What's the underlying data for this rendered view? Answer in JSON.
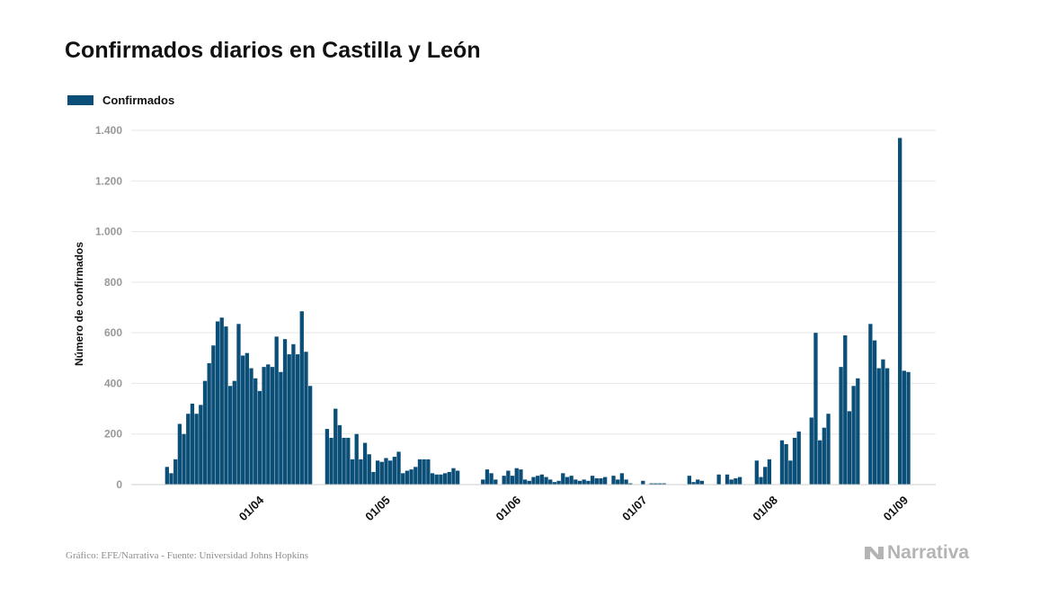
{
  "chart_data": {
    "type": "bar",
    "title": "Confirmados diarios en Castilla y León",
    "ylabel": "Número de confirmados",
    "ylim": [
      0,
      1400
    ],
    "yticks": [
      0,
      200,
      400,
      600,
      800,
      1000,
      1200,
      1400
    ],
    "ytick_labels": [
      "0",
      "200",
      "400",
      "600",
      "800",
      "1.000",
      "1.200",
      "1.400"
    ],
    "x_start": "2020-03-03",
    "x_end": "2020-09-10",
    "xtick_dates": [
      "2020-04-01",
      "2020-05-01",
      "2020-06-01",
      "2020-07-01",
      "2020-08-01",
      "2020-09-01"
    ],
    "xtick_labels": [
      "01/04",
      "01/05",
      "01/06",
      "01/07",
      "01/08",
      "01/09"
    ],
    "grid": true,
    "legend_position": "top-left",
    "series": [
      {
        "name": "Confirmados",
        "color": "#0b4f78",
        "points": [
          {
            "x": "2020-03-11",
            "y": 70
          },
          {
            "x": "2020-03-12",
            "y": 45
          },
          {
            "x": "2020-03-13",
            "y": 100
          },
          {
            "x": "2020-03-14",
            "y": 240
          },
          {
            "x": "2020-03-15",
            "y": 200
          },
          {
            "x": "2020-03-16",
            "y": 280
          },
          {
            "x": "2020-03-17",
            "y": 320
          },
          {
            "x": "2020-03-18",
            "y": 280
          },
          {
            "x": "2020-03-19",
            "y": 315
          },
          {
            "x": "2020-03-20",
            "y": 410
          },
          {
            "x": "2020-03-21",
            "y": 480
          },
          {
            "x": "2020-03-22",
            "y": 550
          },
          {
            "x": "2020-03-23",
            "y": 645
          },
          {
            "x": "2020-03-24",
            "y": 660
          },
          {
            "x": "2020-03-25",
            "y": 625
          },
          {
            "x": "2020-03-26",
            "y": 390
          },
          {
            "x": "2020-03-27",
            "y": 410
          },
          {
            "x": "2020-03-28",
            "y": 635
          },
          {
            "x": "2020-03-29",
            "y": 510
          },
          {
            "x": "2020-03-30",
            "y": 520
          },
          {
            "x": "2020-03-31",
            "y": 460
          },
          {
            "x": "2020-04-01",
            "y": 420
          },
          {
            "x": "2020-04-02",
            "y": 370
          },
          {
            "x": "2020-04-03",
            "y": 465
          },
          {
            "x": "2020-04-04",
            "y": 475
          },
          {
            "x": "2020-04-05",
            "y": 465
          },
          {
            "x": "2020-04-06",
            "y": 585
          },
          {
            "x": "2020-04-07",
            "y": 445
          },
          {
            "x": "2020-04-08",
            "y": 575
          },
          {
            "x": "2020-04-09",
            "y": 515
          },
          {
            "x": "2020-04-10",
            "y": 555
          },
          {
            "x": "2020-04-11",
            "y": 515
          },
          {
            "x": "2020-04-12",
            "y": 685
          },
          {
            "x": "2020-04-13",
            "y": 525
          },
          {
            "x": "2020-04-14",
            "y": 390
          },
          {
            "x": "2020-04-18",
            "y": 220
          },
          {
            "x": "2020-04-19",
            "y": 185
          },
          {
            "x": "2020-04-20",
            "y": 300
          },
          {
            "x": "2020-04-21",
            "y": 235
          },
          {
            "x": "2020-04-22",
            "y": 185
          },
          {
            "x": "2020-04-23",
            "y": 185
          },
          {
            "x": "2020-04-24",
            "y": 100
          },
          {
            "x": "2020-04-25",
            "y": 200
          },
          {
            "x": "2020-04-26",
            "y": 100
          },
          {
            "x": "2020-04-27",
            "y": 165
          },
          {
            "x": "2020-04-28",
            "y": 120
          },
          {
            "x": "2020-04-29",
            "y": 50
          },
          {
            "x": "2020-04-30",
            "y": 95
          },
          {
            "x": "2020-05-01",
            "y": 90
          },
          {
            "x": "2020-05-02",
            "y": 105
          },
          {
            "x": "2020-05-03",
            "y": 95
          },
          {
            "x": "2020-05-04",
            "y": 110
          },
          {
            "x": "2020-05-05",
            "y": 130
          },
          {
            "x": "2020-05-06",
            "y": 45
          },
          {
            "x": "2020-05-07",
            "y": 55
          },
          {
            "x": "2020-05-08",
            "y": 60
          },
          {
            "x": "2020-05-09",
            "y": 70
          },
          {
            "x": "2020-05-10",
            "y": 100
          },
          {
            "x": "2020-05-11",
            "y": 100
          },
          {
            "x": "2020-05-12",
            "y": 100
          },
          {
            "x": "2020-05-13",
            "y": 45
          },
          {
            "x": "2020-05-14",
            "y": 40
          },
          {
            "x": "2020-05-15",
            "y": 40
          },
          {
            "x": "2020-05-16",
            "y": 45
          },
          {
            "x": "2020-05-17",
            "y": 50
          },
          {
            "x": "2020-05-18",
            "y": 65
          },
          {
            "x": "2020-05-19",
            "y": 55
          },
          {
            "x": "2020-05-25",
            "y": 20
          },
          {
            "x": "2020-05-26",
            "y": 60
          },
          {
            "x": "2020-05-27",
            "y": 45
          },
          {
            "x": "2020-05-28",
            "y": 20
          },
          {
            "x": "2020-05-30",
            "y": 35
          },
          {
            "x": "2020-05-31",
            "y": 55
          },
          {
            "x": "2020-06-01",
            "y": 35
          },
          {
            "x": "2020-06-02",
            "y": 65
          },
          {
            "x": "2020-06-03",
            "y": 60
          },
          {
            "x": "2020-06-04",
            "y": 20
          },
          {
            "x": "2020-06-05",
            "y": 15
          },
          {
            "x": "2020-06-06",
            "y": 30
          },
          {
            "x": "2020-06-07",
            "y": 35
          },
          {
            "x": "2020-06-08",
            "y": 40
          },
          {
            "x": "2020-06-09",
            "y": 30
          },
          {
            "x": "2020-06-10",
            "y": 20
          },
          {
            "x": "2020-06-11",
            "y": 10
          },
          {
            "x": "2020-06-12",
            "y": 15
          },
          {
            "x": "2020-06-13",
            "y": 45
          },
          {
            "x": "2020-06-14",
            "y": 30
          },
          {
            "x": "2020-06-15",
            "y": 35
          },
          {
            "x": "2020-06-16",
            "y": 20
          },
          {
            "x": "2020-06-17",
            "y": 15
          },
          {
            "x": "2020-06-18",
            "y": 20
          },
          {
            "x": "2020-06-19",
            "y": 15
          },
          {
            "x": "2020-06-20",
            "y": 35
          },
          {
            "x": "2020-06-21",
            "y": 25
          },
          {
            "x": "2020-06-22",
            "y": 25
          },
          {
            "x": "2020-06-23",
            "y": 30
          },
          {
            "x": "2020-06-25",
            "y": 35
          },
          {
            "x": "2020-06-26",
            "y": 20
          },
          {
            "x": "2020-06-27",
            "y": 45
          },
          {
            "x": "2020-06-28",
            "y": 20
          },
          {
            "x": "2020-06-29",
            "y": 5
          },
          {
            "x": "2020-07-02",
            "y": 15
          },
          {
            "x": "2020-07-04",
            "y": 5
          },
          {
            "x": "2020-07-05",
            "y": 5
          },
          {
            "x": "2020-07-06",
            "y": 5
          },
          {
            "x": "2020-07-07",
            "y": 5
          },
          {
            "x": "2020-07-13",
            "y": 35
          },
          {
            "x": "2020-07-14",
            "y": 10
          },
          {
            "x": "2020-07-15",
            "y": 20
          },
          {
            "x": "2020-07-16",
            "y": 15
          },
          {
            "x": "2020-07-20",
            "y": 40
          },
          {
            "x": "2020-07-22",
            "y": 40
          },
          {
            "x": "2020-07-23",
            "y": 20
          },
          {
            "x": "2020-07-24",
            "y": 25
          },
          {
            "x": "2020-07-25",
            "y": 30
          },
          {
            "x": "2020-07-29",
            "y": 95
          },
          {
            "x": "2020-07-30",
            "y": 30
          },
          {
            "x": "2020-07-31",
            "y": 70
          },
          {
            "x": "2020-08-01",
            "y": 100
          },
          {
            "x": "2020-08-04",
            "y": 175
          },
          {
            "x": "2020-08-05",
            "y": 160
          },
          {
            "x": "2020-08-06",
            "y": 95
          },
          {
            "x": "2020-08-07",
            "y": 185
          },
          {
            "x": "2020-08-08",
            "y": 210
          },
          {
            "x": "2020-08-11",
            "y": 265
          },
          {
            "x": "2020-08-12",
            "y": 600
          },
          {
            "x": "2020-08-13",
            "y": 175
          },
          {
            "x": "2020-08-14",
            "y": 225
          },
          {
            "x": "2020-08-15",
            "y": 280
          },
          {
            "x": "2020-08-18",
            "y": 465
          },
          {
            "x": "2020-08-19",
            "y": 590
          },
          {
            "x": "2020-08-20",
            "y": 290
          },
          {
            "x": "2020-08-21",
            "y": 390
          },
          {
            "x": "2020-08-22",
            "y": 420
          },
          {
            "x": "2020-08-25",
            "y": 635
          },
          {
            "x": "2020-08-26",
            "y": 570
          },
          {
            "x": "2020-08-27",
            "y": 460
          },
          {
            "x": "2020-08-28",
            "y": 495
          },
          {
            "x": "2020-08-29",
            "y": 460
          },
          {
            "x": "2020-09-01",
            "y": 1370
          },
          {
            "x": "2020-09-02",
            "y": 450
          },
          {
            "x": "2020-09-03",
            "y": 445
          }
        ]
      }
    ]
  },
  "source": "Gráfico: EFE/Narrativa - Fuente: Universidad Johns Hopkins",
  "brand": {
    "name": "Narrativa",
    "icon": "narrativa-logo-icon"
  }
}
